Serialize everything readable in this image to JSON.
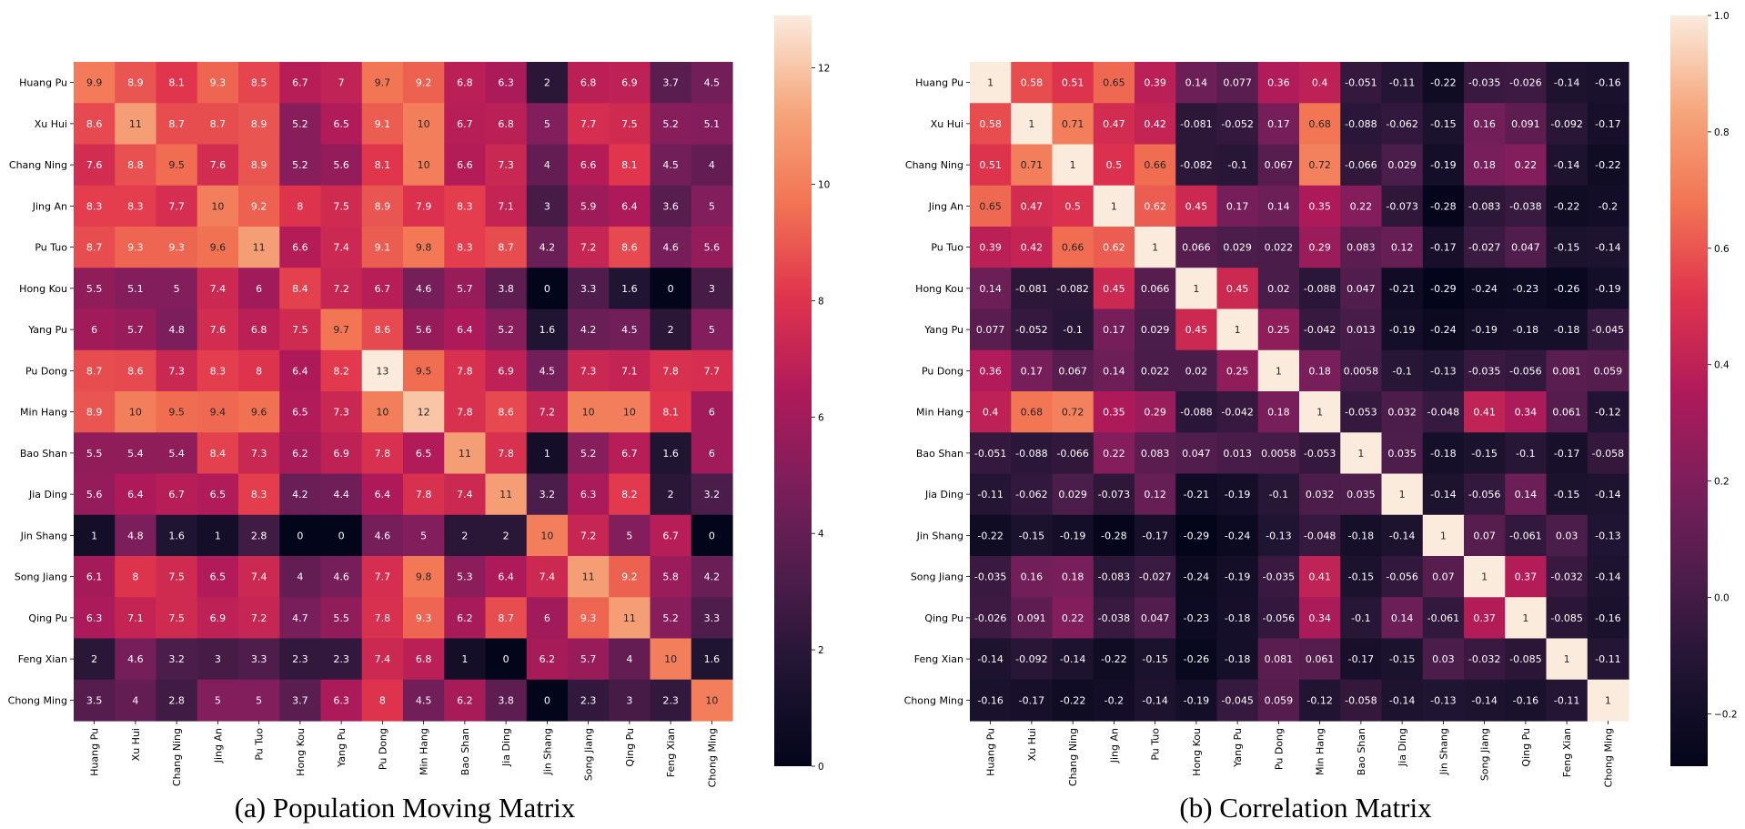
{
  "figure": {
    "captions": [
      "(a) Population Moving Matrix",
      "(b) Correlation Matrix"
    ]
  },
  "chart_data": [
    {
      "type": "heatmap",
      "caption": "(a) Population Moving Matrix",
      "colormap": "rocket",
      "vmin": 0,
      "vmax": 12.9,
      "colorbar_ticks": [
        0,
        2,
        4,
        6,
        8,
        10,
        12
      ],
      "rows": [
        "Huang Pu",
        "Xu Hui",
        "Chang Ning",
        "Jing An",
        "Pu Tuo",
        "Hong Kou",
        "Yang Pu",
        "Pu Dong",
        "Min Hang",
        "Bao Shan",
        "Jia Ding",
        "Jin Shang",
        "Song Jiang",
        "Qing Pu",
        "Feng Xian",
        "Chong Ming"
      ],
      "cols": [
        "Huang Pu",
        "Xu Hui",
        "Chang Ning",
        "Jing An",
        "Pu Tuo",
        "Hong Kou",
        "Yang Pu",
        "Pu Dong",
        "Min Hang",
        "Bao Shan",
        "Jia Ding",
        "Jin Shang",
        "Song Jiang",
        "Qing Pu",
        "Feng Xian",
        "Chong Ming"
      ],
      "values": [
        [
          9.9,
          8.9,
          8.1,
          9.3,
          8.5,
          6.7,
          7,
          9.7,
          9.2,
          6.8,
          6.3,
          2,
          6.8,
          6.9,
          3.7,
          4.5
        ],
        [
          8.6,
          11,
          8.7,
          8.7,
          8.9,
          5.2,
          6.5,
          9.1,
          10,
          6.7,
          6.8,
          5,
          7.7,
          7.5,
          5.2,
          5.1
        ],
        [
          7.6,
          8.8,
          9.5,
          7.6,
          8.9,
          5.2,
          5.6,
          8.1,
          10,
          6.6,
          7.3,
          4,
          6.6,
          8.1,
          4.5,
          4
        ],
        [
          8.3,
          8.3,
          7.7,
          10,
          9.2,
          8,
          7.5,
          8.9,
          7.9,
          8.3,
          7.1,
          3,
          5.9,
          6.4,
          3.6,
          5
        ],
        [
          8.7,
          9.3,
          9.3,
          9.6,
          11,
          6.6,
          7.4,
          9.1,
          9.8,
          8.3,
          8.7,
          4.2,
          7.2,
          8.6,
          4.6,
          5.6
        ],
        [
          5.5,
          5.1,
          5,
          7.4,
          6,
          8.4,
          7.2,
          6.7,
          4.6,
          5.7,
          3.8,
          0,
          3.3,
          1.6,
          0,
          3
        ],
        [
          6,
          5.7,
          4.8,
          7.6,
          6.8,
          7.5,
          9.7,
          8.6,
          5.6,
          6.4,
          5.2,
          1.6,
          4.2,
          4.5,
          2,
          5
        ],
        [
          8.7,
          8.6,
          7.3,
          8.3,
          8,
          6.4,
          8.2,
          13,
          9.5,
          7.8,
          6.9,
          4.5,
          7.3,
          7.1,
          7.8,
          7.7
        ],
        [
          8.9,
          10,
          9.5,
          9.4,
          9.6,
          6.5,
          7.3,
          10,
          12,
          7.8,
          8.6,
          7.2,
          10,
          10,
          8.1,
          6
        ],
        [
          5.5,
          5.4,
          5.4,
          8.4,
          7.3,
          6.2,
          6.9,
          7.8,
          6.5,
          11,
          7.8,
          1,
          5.2,
          6.7,
          1.6,
          6
        ],
        [
          5.6,
          6.4,
          6.7,
          6.5,
          8.3,
          4.2,
          4.4,
          6.4,
          7.8,
          7.4,
          11,
          3.2,
          6.3,
          8.2,
          2,
          3.2
        ],
        [
          1,
          4.8,
          1.6,
          1,
          2.8,
          0,
          0,
          4.6,
          5,
          2,
          2,
          10,
          7.2,
          5,
          6.7,
          0
        ],
        [
          6.1,
          8,
          7.5,
          6.5,
          7.4,
          4,
          4.6,
          7.7,
          9.8,
          5.3,
          6.4,
          7.4,
          11,
          9.2,
          5.8,
          4.2
        ],
        [
          6.3,
          7.1,
          7.5,
          6.9,
          7.2,
          4.7,
          5.5,
          7.8,
          9.3,
          6.2,
          8.7,
          6,
          9.3,
          11,
          5.2,
          3.3
        ],
        [
          2,
          4.6,
          3.2,
          3,
          3.3,
          2.3,
          2.3,
          7.4,
          6.8,
          1,
          0,
          6.2,
          5.7,
          4,
          10,
          1.6
        ],
        [
          3.5,
          4,
          2.8,
          5,
          5,
          3.7,
          6.3,
          8,
          4.5,
          6.2,
          3.8,
          0,
          2.3,
          3,
          2.3,
          10
        ]
      ]
    },
    {
      "type": "heatmap",
      "caption": "(b) Correlation Matrix",
      "colormap": "rocket",
      "vmin": -0.29,
      "vmax": 1.0,
      "colorbar_ticks": [
        -0.2,
        0.0,
        0.2,
        0.4,
        0.6,
        0.8,
        1.0
      ],
      "colorbar_tick_labels": [
        "−0.2",
        "0.0",
        "0.2",
        "0.4",
        "0.6",
        "0.8",
        "1.0"
      ],
      "rows": [
        "Huang Pu",
        "Xu Hui",
        "Chang Ning",
        "Jing An",
        "Pu Tuo",
        "Hong Kou",
        "Yang Pu",
        "Pu Dong",
        "Min Hang",
        "Bao Shan",
        "Jia Ding",
        "Jin Shang",
        "Song Jiang",
        "Qing Pu",
        "Feng Xian",
        "Chong Ming"
      ],
      "cols": [
        "Huang Pu",
        "Xu Hui",
        "Chang Ning",
        "Jing An",
        "Pu Tuo",
        "Hong Kou",
        "Yang Pu",
        "Pu Dong",
        "Min Hang",
        "Bao Shan",
        "Jia Ding",
        "Jin Shang",
        "Song Jiang",
        "Qing Pu",
        "Feng Xian",
        "Chong Ming"
      ],
      "values": [
        [
          1,
          0.58,
          0.51,
          0.65,
          0.39,
          0.14,
          0.077,
          0.36,
          0.4,
          -0.051,
          -0.11,
          -0.22,
          -0.035,
          -0.026,
          -0.14,
          -0.16
        ],
        [
          0.58,
          1,
          0.71,
          0.47,
          0.42,
          -0.081,
          -0.052,
          0.17,
          0.68,
          -0.088,
          -0.062,
          -0.15,
          0.16,
          0.091,
          -0.092,
          -0.17
        ],
        [
          0.51,
          0.71,
          1,
          0.5,
          0.66,
          -0.082,
          -0.1,
          0.067,
          0.72,
          -0.066,
          0.029,
          -0.19,
          0.18,
          0.22,
          -0.14,
          -0.22
        ],
        [
          0.65,
          0.47,
          0.5,
          1,
          0.62,
          0.45,
          0.17,
          0.14,
          0.35,
          0.22,
          -0.073,
          -0.28,
          -0.083,
          -0.038,
          -0.22,
          -0.2
        ],
        [
          0.39,
          0.42,
          0.66,
          0.62,
          1,
          0.066,
          0.029,
          0.022,
          0.29,
          0.083,
          0.12,
          -0.17,
          -0.027,
          0.047,
          -0.15,
          -0.14
        ],
        [
          0.14,
          -0.081,
          -0.082,
          0.45,
          0.066,
          1,
          0.45,
          0.02,
          -0.088,
          0.047,
          -0.21,
          -0.29,
          -0.24,
          -0.23,
          -0.26,
          -0.19
        ],
        [
          0.077,
          -0.052,
          -0.1,
          0.17,
          0.029,
          0.45,
          1,
          0.25,
          -0.042,
          0.013,
          -0.19,
          -0.24,
          -0.19,
          -0.18,
          -0.18,
          -0.045
        ],
        [
          0.36,
          0.17,
          0.067,
          0.14,
          0.022,
          0.02,
          0.25,
          1,
          0.18,
          0.0058,
          -0.1,
          -0.13,
          -0.035,
          -0.056,
          0.081,
          0.059
        ],
        [
          0.4,
          0.68,
          0.72,
          0.35,
          0.29,
          -0.088,
          -0.042,
          0.18,
          1,
          -0.053,
          0.032,
          -0.048,
          0.41,
          0.34,
          0.061,
          -0.12
        ],
        [
          -0.051,
          -0.088,
          -0.066,
          0.22,
          0.083,
          0.047,
          0.013,
          0.0058,
          -0.053,
          1,
          0.035,
          -0.18,
          -0.15,
          -0.1,
          -0.17,
          -0.058
        ],
        [
          -0.11,
          -0.062,
          0.029,
          -0.073,
          0.12,
          -0.21,
          -0.19,
          -0.1,
          0.032,
          0.035,
          1,
          -0.14,
          -0.056,
          0.14,
          -0.15,
          -0.14
        ],
        [
          -0.22,
          -0.15,
          -0.19,
          -0.28,
          -0.17,
          -0.29,
          -0.24,
          -0.13,
          -0.048,
          -0.18,
          -0.14,
          1,
          0.07,
          -0.061,
          0.03,
          -0.13
        ],
        [
          -0.035,
          0.16,
          0.18,
          -0.083,
          -0.027,
          -0.24,
          -0.19,
          -0.035,
          0.41,
          -0.15,
          -0.056,
          0.07,
          1,
          0.37,
          -0.032,
          -0.14
        ],
        [
          -0.026,
          0.091,
          0.22,
          -0.038,
          0.047,
          -0.23,
          -0.18,
          -0.056,
          0.34,
          -0.1,
          0.14,
          -0.061,
          0.37,
          1,
          -0.085,
          -0.16
        ],
        [
          -0.14,
          -0.092,
          -0.14,
          -0.22,
          -0.15,
          -0.26,
          -0.18,
          0.081,
          0.061,
          -0.17,
          -0.15,
          0.03,
          -0.032,
          -0.085,
          1,
          -0.11
        ],
        [
          -0.16,
          -0.17,
          -0.22,
          -0.2,
          -0.14,
          -0.19,
          -0.045,
          0.059,
          -0.12,
          -0.058,
          -0.14,
          -0.13,
          -0.14,
          -0.16,
          -0.11,
          1
        ]
      ]
    }
  ]
}
